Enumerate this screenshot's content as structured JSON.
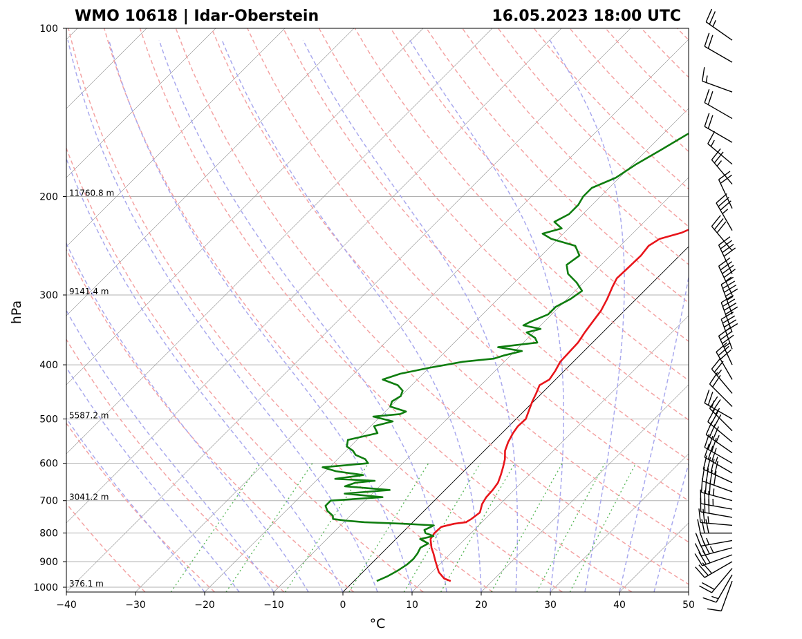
{
  "chart_data": {
    "type": "line",
    "title_left": "WMO 10618 | Idar-Oberstein",
    "title_right": "16.05.2023 18:00 UTC",
    "xlabel": "°C",
    "ylabel": "hPa",
    "xlim": [
      -40,
      50
    ],
    "ylim": [
      1020,
      100
    ],
    "y_scale": "log",
    "x_ticks": [
      "−40",
      "−30",
      "−20",
      "−10",
      "0",
      "10",
      "20",
      "30",
      "40",
      "50"
    ],
    "y_ticks": [
      "100",
      "200",
      "300",
      "400",
      "500",
      "600",
      "700",
      "800",
      "900",
      "1000"
    ],
    "height_labels": [
      {
        "p": 200,
        "text": "11760.8 m"
      },
      {
        "p": 300,
        "text": "9141.4 m"
      },
      {
        "p": 500,
        "text": "5587.2 m"
      },
      {
        "p": 700,
        "text": "3041.2 m"
      },
      {
        "p": 1000,
        "text": "376.1 m"
      }
    ],
    "grid": true,
    "colors": {
      "temperature": "#e8151b",
      "dewpoint": "#0f7d0f",
      "dry_adiabat": "#f4a3a3",
      "moist_adiabat": "#a9a9ee",
      "mixing_ratio": "#5cb85c",
      "isotherm": "#888888"
    },
    "series": [
      {
        "role": "temperature",
        "points": [
          [
            975,
            14.0
          ],
          [
            965,
            12.7
          ],
          [
            940,
            11.0
          ],
          [
            900,
            9.0
          ],
          [
            870,
            7.5
          ],
          [
            850,
            6.4
          ],
          [
            820,
            5.0
          ],
          [
            800,
            4.7
          ],
          [
            780,
            4.8
          ],
          [
            770,
            6.2
          ],
          [
            765,
            7.7
          ],
          [
            755,
            8.0
          ],
          [
            735,
            8.3
          ],
          [
            710,
            7.4
          ],
          [
            690,
            7.0
          ],
          [
            670,
            6.9
          ],
          [
            650,
            6.6
          ],
          [
            630,
            5.9
          ],
          [
            610,
            5.1
          ],
          [
            590,
            4.2
          ],
          [
            570,
            3.0
          ],
          [
            550,
            2.2
          ],
          [
            530,
            1.6
          ],
          [
            515,
            1.3
          ],
          [
            500,
            1.4
          ],
          [
            480,
            0.5
          ],
          [
            465,
            -0.2
          ],
          [
            450,
            -0.8
          ],
          [
            435,
            -1.5
          ],
          [
            425,
            -0.9
          ],
          [
            410,
            -1.3
          ],
          [
            395,
            -1.9
          ],
          [
            380,
            -2.0
          ],
          [
            365,
            -2.1
          ],
          [
            350,
            -2.6
          ],
          [
            335,
            -3.0
          ],
          [
            320,
            -3.4
          ],
          [
            305,
            -4.2
          ],
          [
            290,
            -5.2
          ],
          [
            280,
            -5.8
          ],
          [
            270,
            -5.7
          ],
          [
            255,
            -5.6
          ],
          [
            245,
            -5.9
          ],
          [
            238,
            -5.3
          ],
          [
            232,
            -3.0
          ],
          [
            228,
            -2.2
          ],
          [
            222,
            -2.0
          ],
          [
            215,
            0.5
          ],
          [
            205,
            2.3
          ],
          [
            200,
            3.6
          ],
          [
            192,
            4.6
          ],
          [
            185,
            6.3
          ],
          [
            175,
            8.4
          ],
          [
            165,
            10.8
          ],
          [
            155,
            13.1
          ],
          [
            145,
            15.3
          ],
          [
            135,
            16.8
          ],
          [
            125,
            18.4
          ],
          [
            115,
            21.5
          ],
          [
            105,
            24.1
          ],
          [
            100,
            26.3
          ]
        ]
      },
      {
        "role": "dewpoint",
        "points": [
          [
            975,
            3.3
          ],
          [
            955,
            4.2
          ],
          [
            935,
            4.8
          ],
          [
            910,
            5.3
          ],
          [
            890,
            5.4
          ],
          [
            870,
            5.2
          ],
          [
            850,
            4.8
          ],
          [
            835,
            5.3
          ],
          [
            820,
            3.5
          ],
          [
            810,
            5.0
          ],
          [
            800,
            3.4
          ],
          [
            790,
            2.8
          ],
          [
            782,
            3.2
          ],
          [
            775,
            3.5
          ],
          [
            770,
            -1.0
          ],
          [
            765,
            -7.0
          ],
          [
            760,
            -10.0
          ],
          [
            755,
            -12.0
          ],
          [
            745,
            -12.5
          ],
          [
            730,
            -14.0
          ],
          [
            715,
            -15.0
          ],
          [
            700,
            -15.0
          ],
          [
            690,
            -8.0
          ],
          [
            680,
            -14.0
          ],
          [
            670,
            -8.0
          ],
          [
            660,
            -15.0
          ],
          [
            650,
            -14.0
          ],
          [
            645,
            -11.5
          ],
          [
            640,
            -17.5
          ],
          [
            630,
            -14.0
          ],
          [
            620,
            -18.5
          ],
          [
            610,
            -21.0
          ],
          [
            600,
            -15.0
          ],
          [
            590,
            -16.0
          ],
          [
            580,
            -18.0
          ],
          [
            570,
            -19.0
          ],
          [
            560,
            -20.5
          ],
          [
            545,
            -21.3
          ],
          [
            530,
            -18.0
          ],
          [
            515,
            -19.5
          ],
          [
            505,
            -17.5
          ],
          [
            495,
            -21.0
          ],
          [
            490,
            -17.5
          ],
          [
            485,
            -17.0
          ],
          [
            475,
            -20.0
          ],
          [
            465,
            -20.5
          ],
          [
            455,
            -20.0
          ],
          [
            445,
            -20.5
          ],
          [
            435,
            -22.0
          ],
          [
            425,
            -25.0
          ],
          [
            415,
            -23.3
          ],
          [
            405,
            -20.0
          ],
          [
            395,
            -16.0
          ],
          [
            390,
            -12.0
          ],
          [
            385,
            -11.0
          ],
          [
            378,
            -9.0
          ],
          [
            372,
            -13.0
          ],
          [
            365,
            -8.0
          ],
          [
            358,
            -9.0
          ],
          [
            350,
            -11.0
          ],
          [
            345,
            -9.5
          ],
          [
            340,
            -12.5
          ],
          [
            335,
            -12.0
          ],
          [
            325,
            -10.5
          ],
          [
            315,
            -10.5
          ],
          [
            305,
            -9.5
          ],
          [
            295,
            -9.0
          ],
          [
            285,
            -11.0
          ],
          [
            275,
            -13.5
          ],
          [
            265,
            -15.0
          ],
          [
            255,
            -14.5
          ],
          [
            245,
            -16.5
          ],
          [
            238,
            -21.0
          ],
          [
            233,
            -23.0
          ],
          [
            228,
            -21.0
          ],
          [
            222,
            -23.0
          ],
          [
            215,
            -22.0
          ],
          [
            207,
            -22.0
          ],
          [
            200,
            -22.5
          ],
          [
            193,
            -22.5
          ],
          [
            185,
            -20.5
          ],
          [
            175,
            -19.5
          ],
          [
            165,
            -18.0
          ],
          [
            155,
            -16.5
          ],
          [
            145,
            -14.5
          ],
          [
            135,
            -13.5
          ],
          [
            125,
            -11.0
          ],
          [
            115,
            -9.0
          ],
          [
            108,
            -6.0
          ],
          [
            100,
            -3.6
          ]
        ]
      }
    ],
    "wind_barbs": [
      {
        "p": 975,
        "dir": 200,
        "kt": 10
      },
      {
        "p": 950,
        "dir": 210,
        "kt": 15
      },
      {
        "p": 925,
        "dir": 220,
        "kt": 20
      },
      {
        "p": 900,
        "dir": 240,
        "kt": 30
      },
      {
        "p": 875,
        "dir": 250,
        "kt": 30
      },
      {
        "p": 850,
        "dir": 255,
        "kt": 35
      },
      {
        "p": 825,
        "dir": 260,
        "kt": 25
      },
      {
        "p": 800,
        "dir": 270,
        "kt": 30
      },
      {
        "p": 775,
        "dir": 275,
        "kt": 25
      },
      {
        "p": 750,
        "dir": 280,
        "kt": 30
      },
      {
        "p": 725,
        "dir": 280,
        "kt": 35
      },
      {
        "p": 700,
        "dir": 285,
        "kt": 35
      },
      {
        "p": 675,
        "dir": 290,
        "kt": 40
      },
      {
        "p": 650,
        "dir": 295,
        "kt": 40
      },
      {
        "p": 625,
        "dir": 300,
        "kt": 35
      },
      {
        "p": 600,
        "dir": 300,
        "kt": 30
      },
      {
        "p": 575,
        "dir": 305,
        "kt": 35
      },
      {
        "p": 550,
        "dir": 310,
        "kt": 30
      },
      {
        "p": 525,
        "dir": 315,
        "kt": 25
      },
      {
        "p": 500,
        "dir": 300,
        "kt": 25
      },
      {
        "p": 475,
        "dir": 315,
        "kt": 20
      },
      {
        "p": 450,
        "dir": 320,
        "kt": 25
      },
      {
        "p": 425,
        "dir": 330,
        "kt": 30
      },
      {
        "p": 400,
        "dir": 335,
        "kt": 35
      },
      {
        "p": 375,
        "dir": 340,
        "kt": 40
      },
      {
        "p": 350,
        "dir": 340,
        "kt": 40
      },
      {
        "p": 325,
        "dir": 340,
        "kt": 45
      },
      {
        "p": 300,
        "dir": 335,
        "kt": 45
      },
      {
        "p": 275,
        "dir": 335,
        "kt": 40
      },
      {
        "p": 250,
        "dir": 320,
        "kt": 30
      },
      {
        "p": 230,
        "dir": 330,
        "kt": 35
      },
      {
        "p": 210,
        "dir": 335,
        "kt": 20
      },
      {
        "p": 190,
        "dir": 320,
        "kt": 25
      },
      {
        "p": 175,
        "dir": 310,
        "kt": 15
      },
      {
        "p": 160,
        "dir": 300,
        "kt": 20
      },
      {
        "p": 145,
        "dir": 300,
        "kt": 20
      },
      {
        "p": 130,
        "dir": 290,
        "kt": 15
      },
      {
        "p": 115,
        "dir": 300,
        "kt": 20
      },
      {
        "p": 105,
        "dir": 305,
        "kt": 25
      }
    ]
  }
}
